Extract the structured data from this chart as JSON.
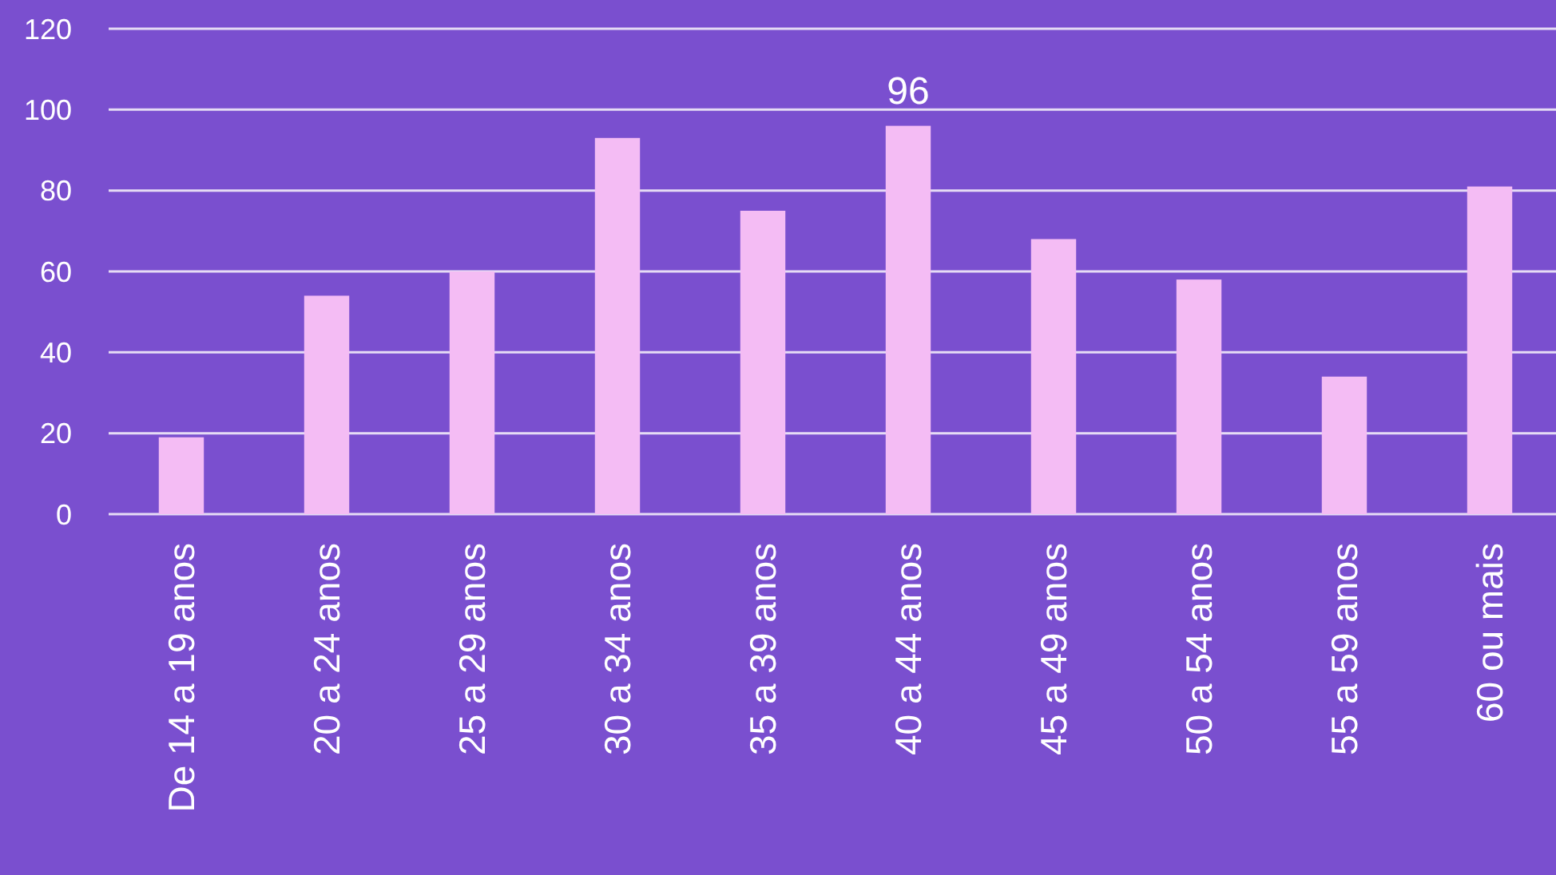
{
  "chart_data": {
    "type": "bar",
    "categories": [
      "De 14 a 19 anos",
      "20 a 24 anos",
      "25 a 29 anos",
      "30 a 34 anos",
      "35 a 39 anos",
      "40 a 44 anos",
      "45 a 49 anos",
      "50 a 54 anos",
      "55 a 59 anos",
      "60 ou mais"
    ],
    "values": [
      19,
      54,
      60,
      93,
      75,
      96,
      68,
      58,
      34,
      81
    ],
    "value_labels": [
      null,
      null,
      null,
      null,
      null,
      "96",
      null,
      null,
      null,
      null
    ],
    "color": "#f4bcf4",
    "ylim": [
      0,
      120
    ],
    "yticks": [
      0,
      20,
      40,
      60,
      80,
      100,
      120
    ],
    "grid": "y"
  }
}
